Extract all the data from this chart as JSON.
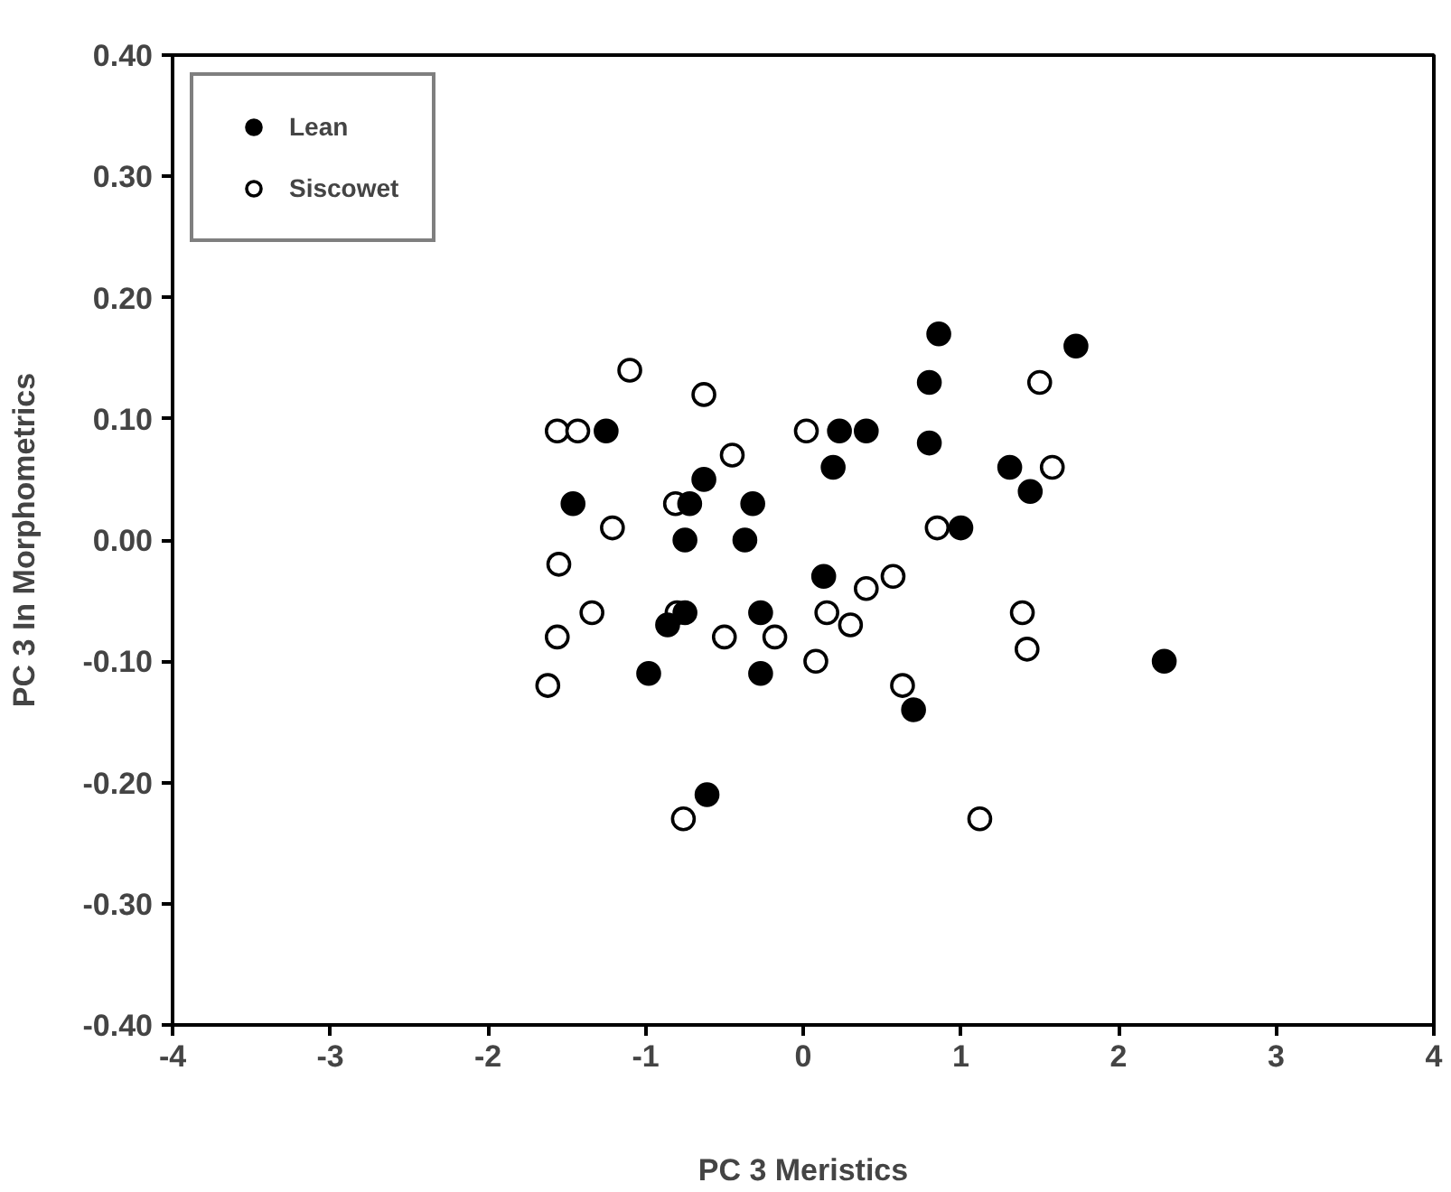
{
  "chart_data": {
    "type": "scatter",
    "xlabel": "PC 3 Meristics",
    "ylabel": "PC 3 In Morphometrics",
    "xlim": [
      -4,
      4
    ],
    "ylim": [
      -0.4,
      0.4
    ],
    "xticks": [
      -4,
      -3,
      -2,
      -1,
      0,
      1,
      2,
      3,
      4
    ],
    "yticks": [
      {
        "value": -0.4,
        "label": "-0.40"
      },
      {
        "value": -0.3,
        "label": "-0.30"
      },
      {
        "value": -0.2,
        "label": "-0.20"
      },
      {
        "value": -0.1,
        "label": "-0.10"
      },
      {
        "value": 0,
        "label": "0.00"
      },
      {
        "value": 0.1,
        "label": "0.10"
      },
      {
        "value": 0.2,
        "label": "0.20"
      },
      {
        "value": 0.3,
        "label": "0.30"
      },
      {
        "value": 0.4,
        "label": "0.40"
      }
    ],
    "grid": false,
    "legend": "top left",
    "marker": "circle",
    "series": [
      {
        "name": "Lean",
        "color": "#000000",
        "x": [
          0.86,
          0.8,
          -1.25,
          0.23,
          0.4,
          0.8,
          0.19,
          -0.63,
          -1.46,
          -0.72,
          -0.32,
          -0.75,
          -0.37,
          1.0,
          0.13,
          -0.75,
          -0.86,
          -0.27,
          -0.98,
          -0.27,
          0.7,
          -0.61,
          1.73,
          1.31,
          1.44,
          2.29
        ],
        "values": [
          0.17,
          0.13,
          0.09,
          0.09,
          0.09,
          0.08,
          0.06,
          0.05,
          0.03,
          0.03,
          0.03,
          0.0,
          0.0,
          0.01,
          -0.03,
          -0.06,
          -0.07,
          -0.06,
          -0.11,
          -0.11,
          -0.14,
          -0.21,
          0.16,
          0.06,
          0.04,
          -0.1
        ]
      },
      {
        "name": "Siscowet",
        "color": "#ffffff",
        "x": [
          -1.1,
          -0.63,
          -1.56,
          -1.43,
          0.02,
          -0.45,
          -0.81,
          -1.21,
          -1.55,
          -0.8,
          -1.34,
          -1.56,
          -0.5,
          -0.18,
          0.15,
          0.4,
          0.57,
          0.3,
          0.08,
          0.63,
          -1.62,
          -0.76,
          0.85,
          1.5,
          1.58,
          1.39,
          1.42,
          1.12
        ],
        "values": [
          0.14,
          0.12,
          0.09,
          0.09,
          0.09,
          0.07,
          0.03,
          0.01,
          -0.02,
          -0.06,
          -0.06,
          -0.08,
          -0.08,
          -0.08,
          -0.06,
          -0.04,
          -0.03,
          -0.07,
          -0.1,
          -0.12,
          -0.12,
          -0.23,
          0.01,
          0.13,
          0.06,
          -0.06,
          -0.09,
          -0.23
        ]
      }
    ]
  }
}
